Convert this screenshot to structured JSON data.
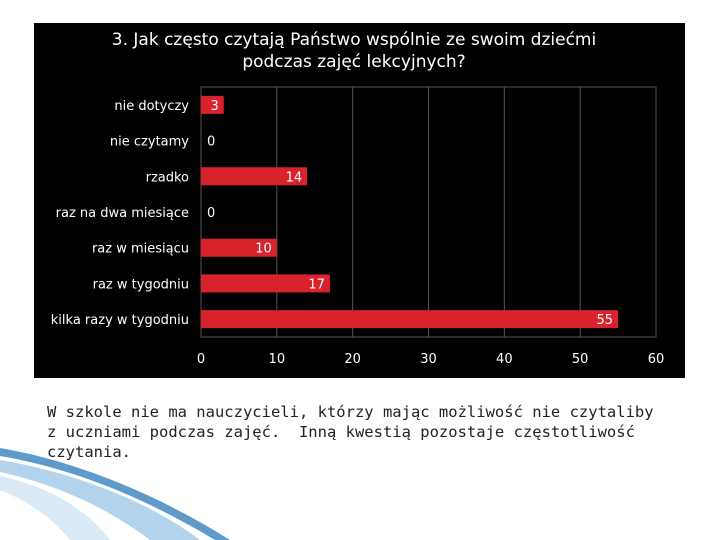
{
  "chart_data": {
    "type": "bar",
    "orientation": "horizontal",
    "title": "3. Jak często czytają Państwo wspólnie ze swoim dziećmi podczas zajęć lekcyjnych?",
    "categories": [
      "nie dotyczy",
      "nie czytamy",
      "rzadko",
      "raz na dwa miesiące",
      "raz w miesiącu",
      "raz w tygodniu",
      "kilka razy w tygodniu"
    ],
    "values": [
      3,
      0,
      14,
      0,
      10,
      17,
      55
    ],
    "xlim": [
      0,
      60
    ],
    "xticks": [
      0,
      10,
      20,
      30,
      40,
      50,
      60
    ],
    "grid": true,
    "colors": {
      "bar": "#d8232c",
      "background": "#000000",
      "text": "#ffffff",
      "grid": "#555555"
    }
  },
  "caption": "W szkole nie ma nauczycieli, którzy mając możliwość nie czytaliby\nz uczniami podczas zajęć.  Inną kwestią pozostaje częstotliwość\nczytania."
}
